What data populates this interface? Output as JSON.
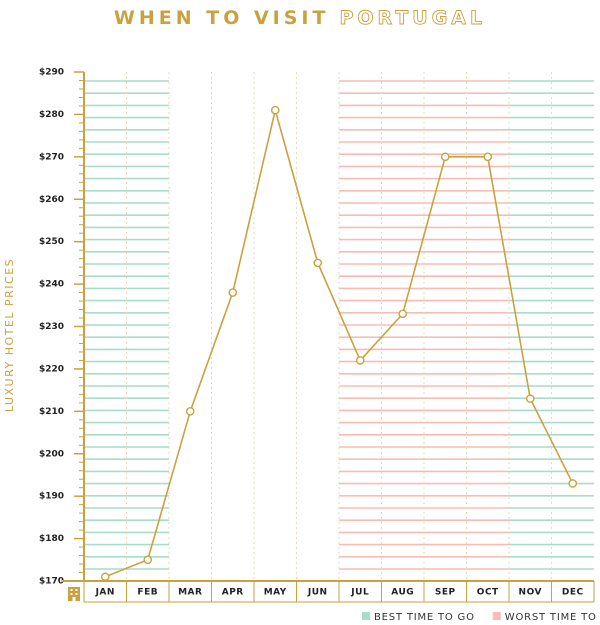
{
  "chart_data": {
    "type": "line",
    "title": "WHEN TO VISIT",
    "title_highlight": "PORTUGAL",
    "y_label": "LUXURY HOTEL PRICES",
    "categories": [
      "JAN",
      "FEB",
      "MAR",
      "APR",
      "MAY",
      "JUN",
      "JUL",
      "AUG",
      "SEP",
      "OCT",
      "NOV",
      "DEC"
    ],
    "values": [
      171,
      175,
      210,
      238,
      281,
      245,
      222,
      233,
      270,
      270,
      213,
      193
    ],
    "color": "#c9a23f",
    "ylim": [
      170,
      290
    ],
    "yticks": [
      {
        "value": 170,
        "label": "$170"
      },
      {
        "value": 180,
        "label": "$180"
      },
      {
        "value": 190,
        "label": "$190"
      },
      {
        "value": 200,
        "label": "$200"
      },
      {
        "value": 210,
        "label": "$210"
      },
      {
        "value": 220,
        "label": "$220"
      },
      {
        "value": 230,
        "label": "$230"
      },
      {
        "value": 240,
        "label": "$240"
      },
      {
        "value": 250,
        "label": "$250"
      },
      {
        "value": 260,
        "label": "$260"
      },
      {
        "value": 270,
        "label": "$270"
      },
      {
        "value": 280,
        "label": "$280"
      },
      {
        "value": 290,
        "label": "$290"
      }
    ],
    "bands": [
      {
        "name": "BEST TIME TO GO",
        "color": "#a9dccb",
        "categories": [
          "JAN",
          "FEB",
          "NOV",
          "DEC"
        ]
      },
      {
        "name": "WORST TIME TO GO",
        "color": "#f6bdb4",
        "categories": [
          "JUL",
          "AUG",
          "SEP",
          "OCT"
        ]
      }
    ]
  }
}
